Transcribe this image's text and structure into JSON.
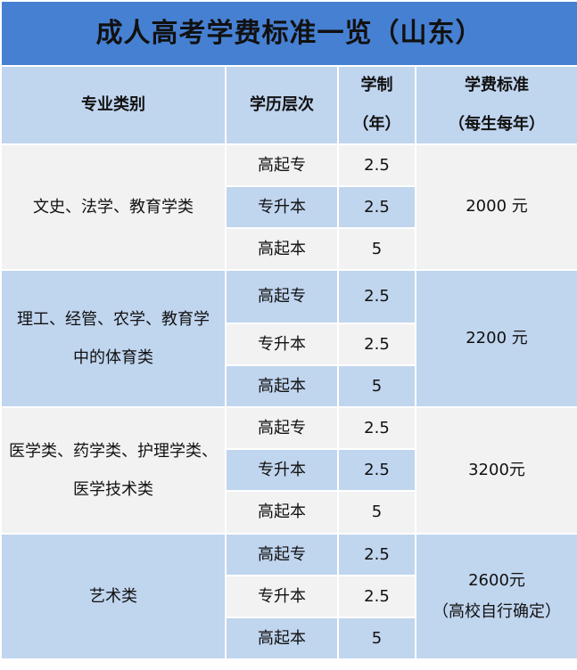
{
  "title": "成人高考学费标准一览（山东）",
  "headers": {
    "major": "专业类别",
    "level": "学历层次",
    "duration_line1": "学制",
    "duration_line2": "（年）",
    "fee_line1": "学费标准",
    "fee_line2": "（每生每年）"
  },
  "colors": {
    "title_bg": "#4680D2",
    "blue_cell": "#C0D5EE",
    "gray_cell": "#F2F2F2"
  },
  "groups": [
    {
      "major_line1": "文史、法学、教育学类",
      "major_line2": "",
      "fee_line1": "2000 元",
      "fee_line2": "",
      "rows": [
        {
          "level": "高起专",
          "years": "2.5"
        },
        {
          "level": "专升本",
          "years": "2.5"
        },
        {
          "level": "高起本",
          "years": "5"
        }
      ]
    },
    {
      "major_line1": "理工、经管、农学、教育学",
      "major_line2": "中的体育类",
      "fee_line1": "2200 元",
      "fee_line2": "",
      "rows": [
        {
          "level": "高起专",
          "years": "2.5"
        },
        {
          "level": "专升本",
          "years": "2.5"
        },
        {
          "level": "高起本",
          "years": "5"
        }
      ]
    },
    {
      "major_line1": "医学类、药学类、护理学类、",
      "major_line2": "医学技术类",
      "fee_line1": "3200元",
      "fee_line2": "",
      "rows": [
        {
          "level": "高起专",
          "years": "2.5"
        },
        {
          "level": "专升本",
          "years": "2.5"
        },
        {
          "level": "高起本",
          "years": "5"
        }
      ]
    },
    {
      "major_line1": "艺术类",
      "major_line2": "",
      "fee_line1": "2600元",
      "fee_line2": "（高校自行确定）",
      "rows": [
        {
          "level": "高起专",
          "years": "2.5"
        },
        {
          "level": "专升本",
          "years": "2.5"
        },
        {
          "level": "高起本",
          "years": "5"
        }
      ]
    }
  ]
}
